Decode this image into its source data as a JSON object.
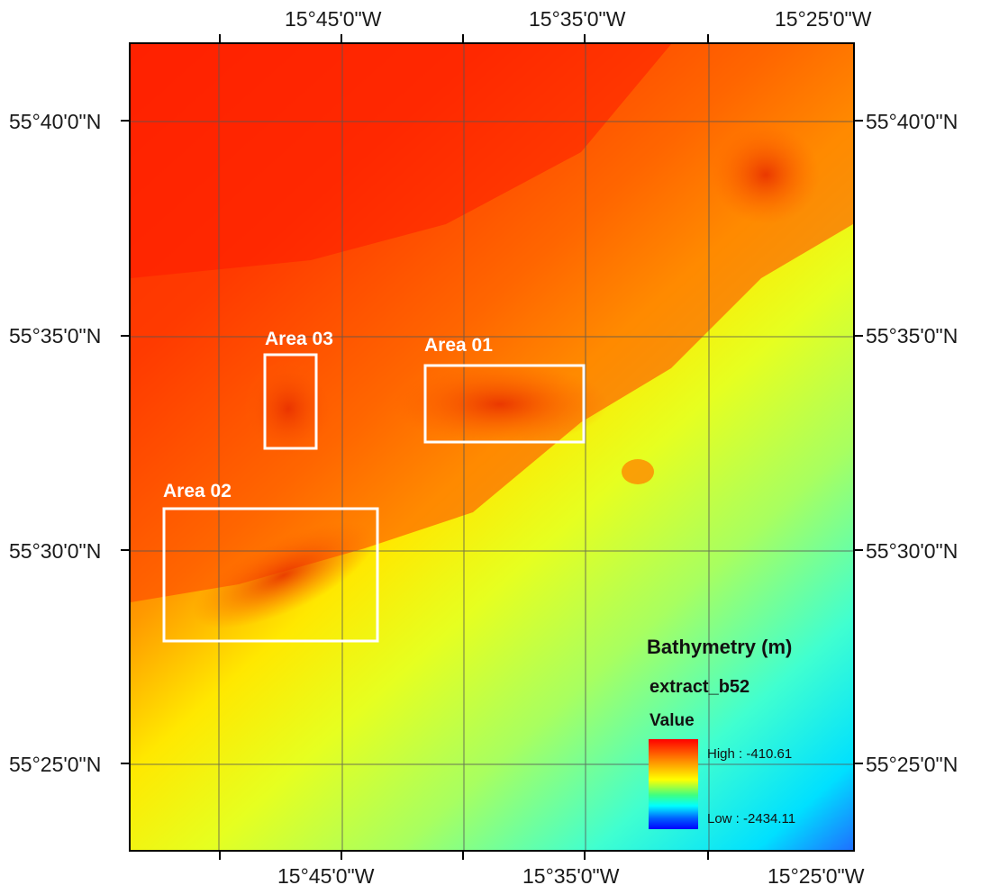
{
  "map": {
    "longitude_labels": [
      "15°45'0\"W",
      "15°35'0\"W",
      "15°25'0\"W"
    ],
    "latitude_labels": [
      "55°40'0\"N",
      "55°35'0\"N",
      "55°30'0\"N",
      "55°25'0\"N"
    ],
    "areas": [
      {
        "id": "01",
        "label": "Area 01"
      },
      {
        "id": "02",
        "label": "Area 02"
      },
      {
        "id": "03",
        "label": "Area 03"
      }
    ],
    "colors": {
      "high": "#ff0000",
      "mid": "#ffff00",
      "low": "#0000ff",
      "area_box": "#ffffff",
      "graticule": "#555555"
    }
  },
  "legend": {
    "title": "Bathymetry (m)",
    "layer": "extract_b52",
    "field": "Value",
    "high": "High : -410.61",
    "low": "Low : -2434.11",
    "high_value": -410.61,
    "low_value": -2434.11
  }
}
